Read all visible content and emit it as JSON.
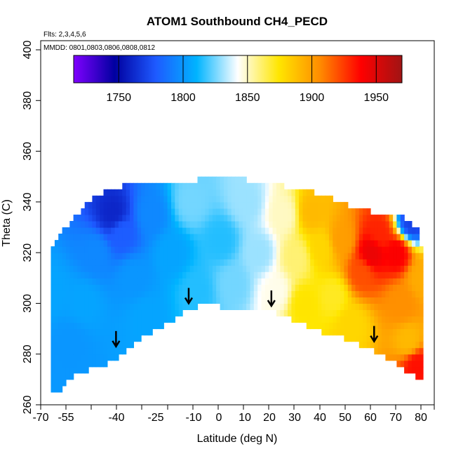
{
  "chart_data": {
    "type": "heatmap",
    "title": "ATOM1 Southbound CH4_PECD",
    "flights_label": "Flts: 2,3,4,5,6",
    "dates_label": "MMDD: 0801,0803,0806,0808,0812",
    "xlabel": "Latitude (deg N)",
    "ylabel": "Theta (C)",
    "xlim": [
      -70,
      85
    ],
    "ylim": [
      260,
      404
    ],
    "x_tick_labels": [
      "-70",
      "-55",
      "-40",
      "-25",
      "-10",
      "0",
      "10",
      "20",
      "30",
      "40",
      "50",
      "60",
      "70",
      "80"
    ],
    "y_tick_labels": [
      "260",
      "280",
      "300",
      "320",
      "340",
      "360",
      "380",
      "400"
    ],
    "colorbar": {
      "range": [
        1715,
        1970
      ],
      "tick_values": [
        1750,
        1800,
        1850,
        1900,
        1950
      ],
      "tick_labels": [
        "1750",
        "1800",
        "1850",
        "1900",
        "1950"
      ],
      "colors": [
        "#8000ff",
        "#0000a0",
        "#1e5aff",
        "#00b4ff",
        "#ffffff",
        "#ffe600",
        "#ff8c00",
        "#ff0000",
        "#a01414"
      ]
    },
    "upper_envelope": [
      [
        -68,
        315
      ],
      [
        -67,
        323
      ],
      [
        -60,
        331
      ],
      [
        -55,
        337
      ],
      [
        -47,
        343
      ],
      [
        -40,
        345
      ],
      [
        -30,
        346
      ],
      [
        -15,
        347
      ],
      [
        -5,
        348
      ],
      [
        5,
        348
      ],
      [
        15,
        347
      ],
      [
        25,
        345
      ],
      [
        35,
        343
      ],
      [
        45,
        340
      ],
      [
        55,
        336
      ],
      [
        65,
        334
      ],
      [
        72,
        333
      ],
      [
        76,
        331
      ],
      [
        79,
        327
      ],
      [
        80,
        320
      ]
    ],
    "lower_envelope": [
      [
        80,
        272
      ],
      [
        76,
        273
      ],
      [
        70,
        278
      ],
      [
        60,
        283
      ],
      [
        50,
        287
      ],
      [
        40,
        290
      ],
      [
        30,
        294
      ],
      [
        20,
        298
      ],
      [
        10,
        299
      ],
      [
        0,
        300
      ],
      [
        -10,
        300
      ],
      [
        -15,
        298
      ],
      [
        -23,
        292
      ],
      [
        -33,
        287
      ],
      [
        -42,
        279
      ],
      [
        -48,
        276
      ],
      [
        -58,
        274
      ],
      [
        -62,
        270
      ],
      [
        -67,
        264
      ],
      [
        -68,
        270
      ]
    ],
    "ch4_anchor_points": [
      {
        "lat": -68,
        "theta": 305,
        "ch4": 1805
      },
      {
        "lat": -60,
        "theta": 285,
        "ch4": 1800
      },
      {
        "lat": -55,
        "theta": 300,
        "ch4": 1805
      },
      {
        "lat": -50,
        "theta": 320,
        "ch4": 1795
      },
      {
        "lat": -43,
        "theta": 335,
        "ch4": 1760
      },
      {
        "lat": -40,
        "theta": 328,
        "ch4": 1780
      },
      {
        "lat": -35,
        "theta": 310,
        "ch4": 1800
      },
      {
        "lat": -30,
        "theta": 295,
        "ch4": 1805
      },
      {
        "lat": -28,
        "theta": 335,
        "ch4": 1795
      },
      {
        "lat": -20,
        "theta": 320,
        "ch4": 1805
      },
      {
        "lat": -12,
        "theta": 340,
        "ch4": 1825
      },
      {
        "lat": -10,
        "theta": 305,
        "ch4": 1815
      },
      {
        "lat": 0,
        "theta": 325,
        "ch4": 1815
      },
      {
        "lat": 5,
        "theta": 308,
        "ch4": 1825
      },
      {
        "lat": 10,
        "theta": 340,
        "ch4": 1830
      },
      {
        "lat": 15,
        "theta": 320,
        "ch4": 1830
      },
      {
        "lat": 22,
        "theta": 305,
        "ch4": 1845
      },
      {
        "lat": 25,
        "theta": 335,
        "ch4": 1850
      },
      {
        "lat": 30,
        "theta": 318,
        "ch4": 1860
      },
      {
        "lat": 33,
        "theta": 300,
        "ch4": 1875
      },
      {
        "lat": 36,
        "theta": 336,
        "ch4": 1890
      },
      {
        "lat": 40,
        "theta": 322,
        "ch4": 1880
      },
      {
        "lat": 45,
        "theta": 303,
        "ch4": 1870
      },
      {
        "lat": 48,
        "theta": 325,
        "ch4": 1900
      },
      {
        "lat": 52,
        "theta": 292,
        "ch4": 1880
      },
      {
        "lat": 56,
        "theta": 312,
        "ch4": 1920
      },
      {
        "lat": 60,
        "theta": 320,
        "ch4": 1945
      },
      {
        "lat": 63,
        "theta": 328,
        "ch4": 1930
      },
      {
        "lat": 70,
        "theta": 320,
        "ch4": 1940
      },
      {
        "lat": 72,
        "theta": 300,
        "ch4": 1905
      },
      {
        "lat": 75,
        "theta": 285,
        "ch4": 1890
      },
      {
        "lat": 78,
        "theta": 276,
        "ch4": 1935
      },
      {
        "lat": 76,
        "theta": 332,
        "ch4": 1770
      },
      {
        "lat": 80,
        "theta": 310,
        "ch4": 1895
      }
    ],
    "arrows": [
      {
        "lat": -42,
        "theta": 283
      },
      {
        "lat": -13,
        "theta": 300
      },
      {
        "lat": 20,
        "theta": 299
      },
      {
        "lat": 61,
        "theta": 285
      }
    ]
  }
}
